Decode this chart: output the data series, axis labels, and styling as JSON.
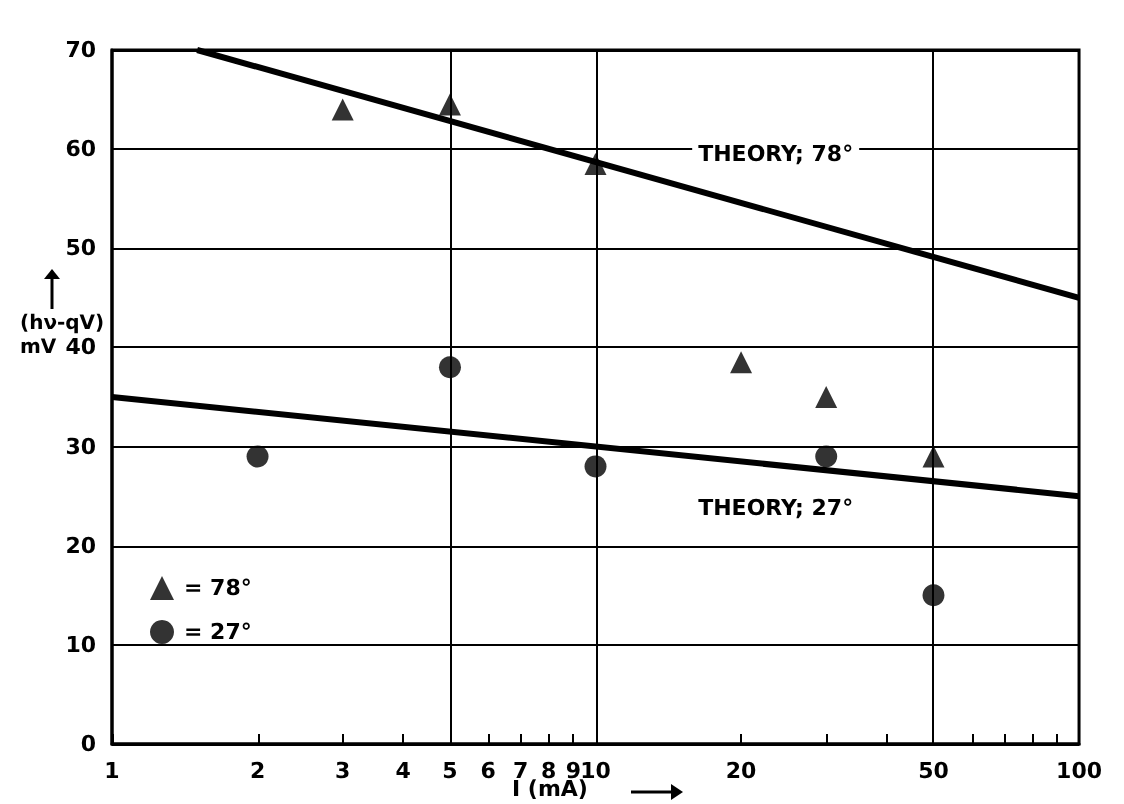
{
  "chart_data": {
    "type": "scatter",
    "xlabel": "I (mA)",
    "ylabel": "(hν-qV) mV",
    "log": "x",
    "xlim": [
      1,
      100
    ],
    "ylim": [
      0,
      70
    ],
    "xticks": [
      1,
      2,
      3,
      4,
      5,
      6,
      7,
      8,
      9,
      10,
      20,
      {
        "value": 30,
        "label": null
      },
      {
        "value": 40,
        "label": null
      },
      50,
      {
        "value": 60,
        "label": null
      },
      {
        "value": 70,
        "label": null
      },
      {
        "value": 80,
        "label": null
      },
      {
        "value": 90,
        "label": null
      },
      100
    ],
    "yticks": [
      0,
      10,
      20,
      30,
      40,
      50,
      60,
      70
    ],
    "grid": "y",
    "legend": "bottom left",
    "series": [
      {
        "name": "= 78°",
        "marker": "triangle",
        "color": "#000000",
        "x": [
          3,
          5,
          10,
          20,
          30,
          50
        ],
        "values": [
          64,
          64.5,
          58.5,
          38.5,
          35,
          29
        ]
      },
      {
        "name": "= 27°",
        "marker": "circle",
        "color": "#000000",
        "x": [
          2,
          5,
          10,
          30,
          50
        ],
        "values": [
          29,
          38,
          28,
          29,
          15
        ]
      },
      {
        "type": "line",
        "color": "#000000",
        "x": [
          1.5,
          100
        ],
        "values": [
          70,
          45
        ]
      },
      {
        "type": "line",
        "color": "#000000",
        "x": [
          1,
          100
        ],
        "values": [
          35,
          25
        ]
      }
    ],
    "ref_lines": [
      {
        "axis": "x",
        "value": 5,
        "color": "#000000"
      },
      {
        "axis": "x",
        "value": 10,
        "color": "#000000"
      },
      {
        "axis": "x",
        "value": 50,
        "color": "#000000"
      }
    ],
    "annotations": [
      "THEORY; 78°",
      "THEORY; 27°"
    ]
  }
}
